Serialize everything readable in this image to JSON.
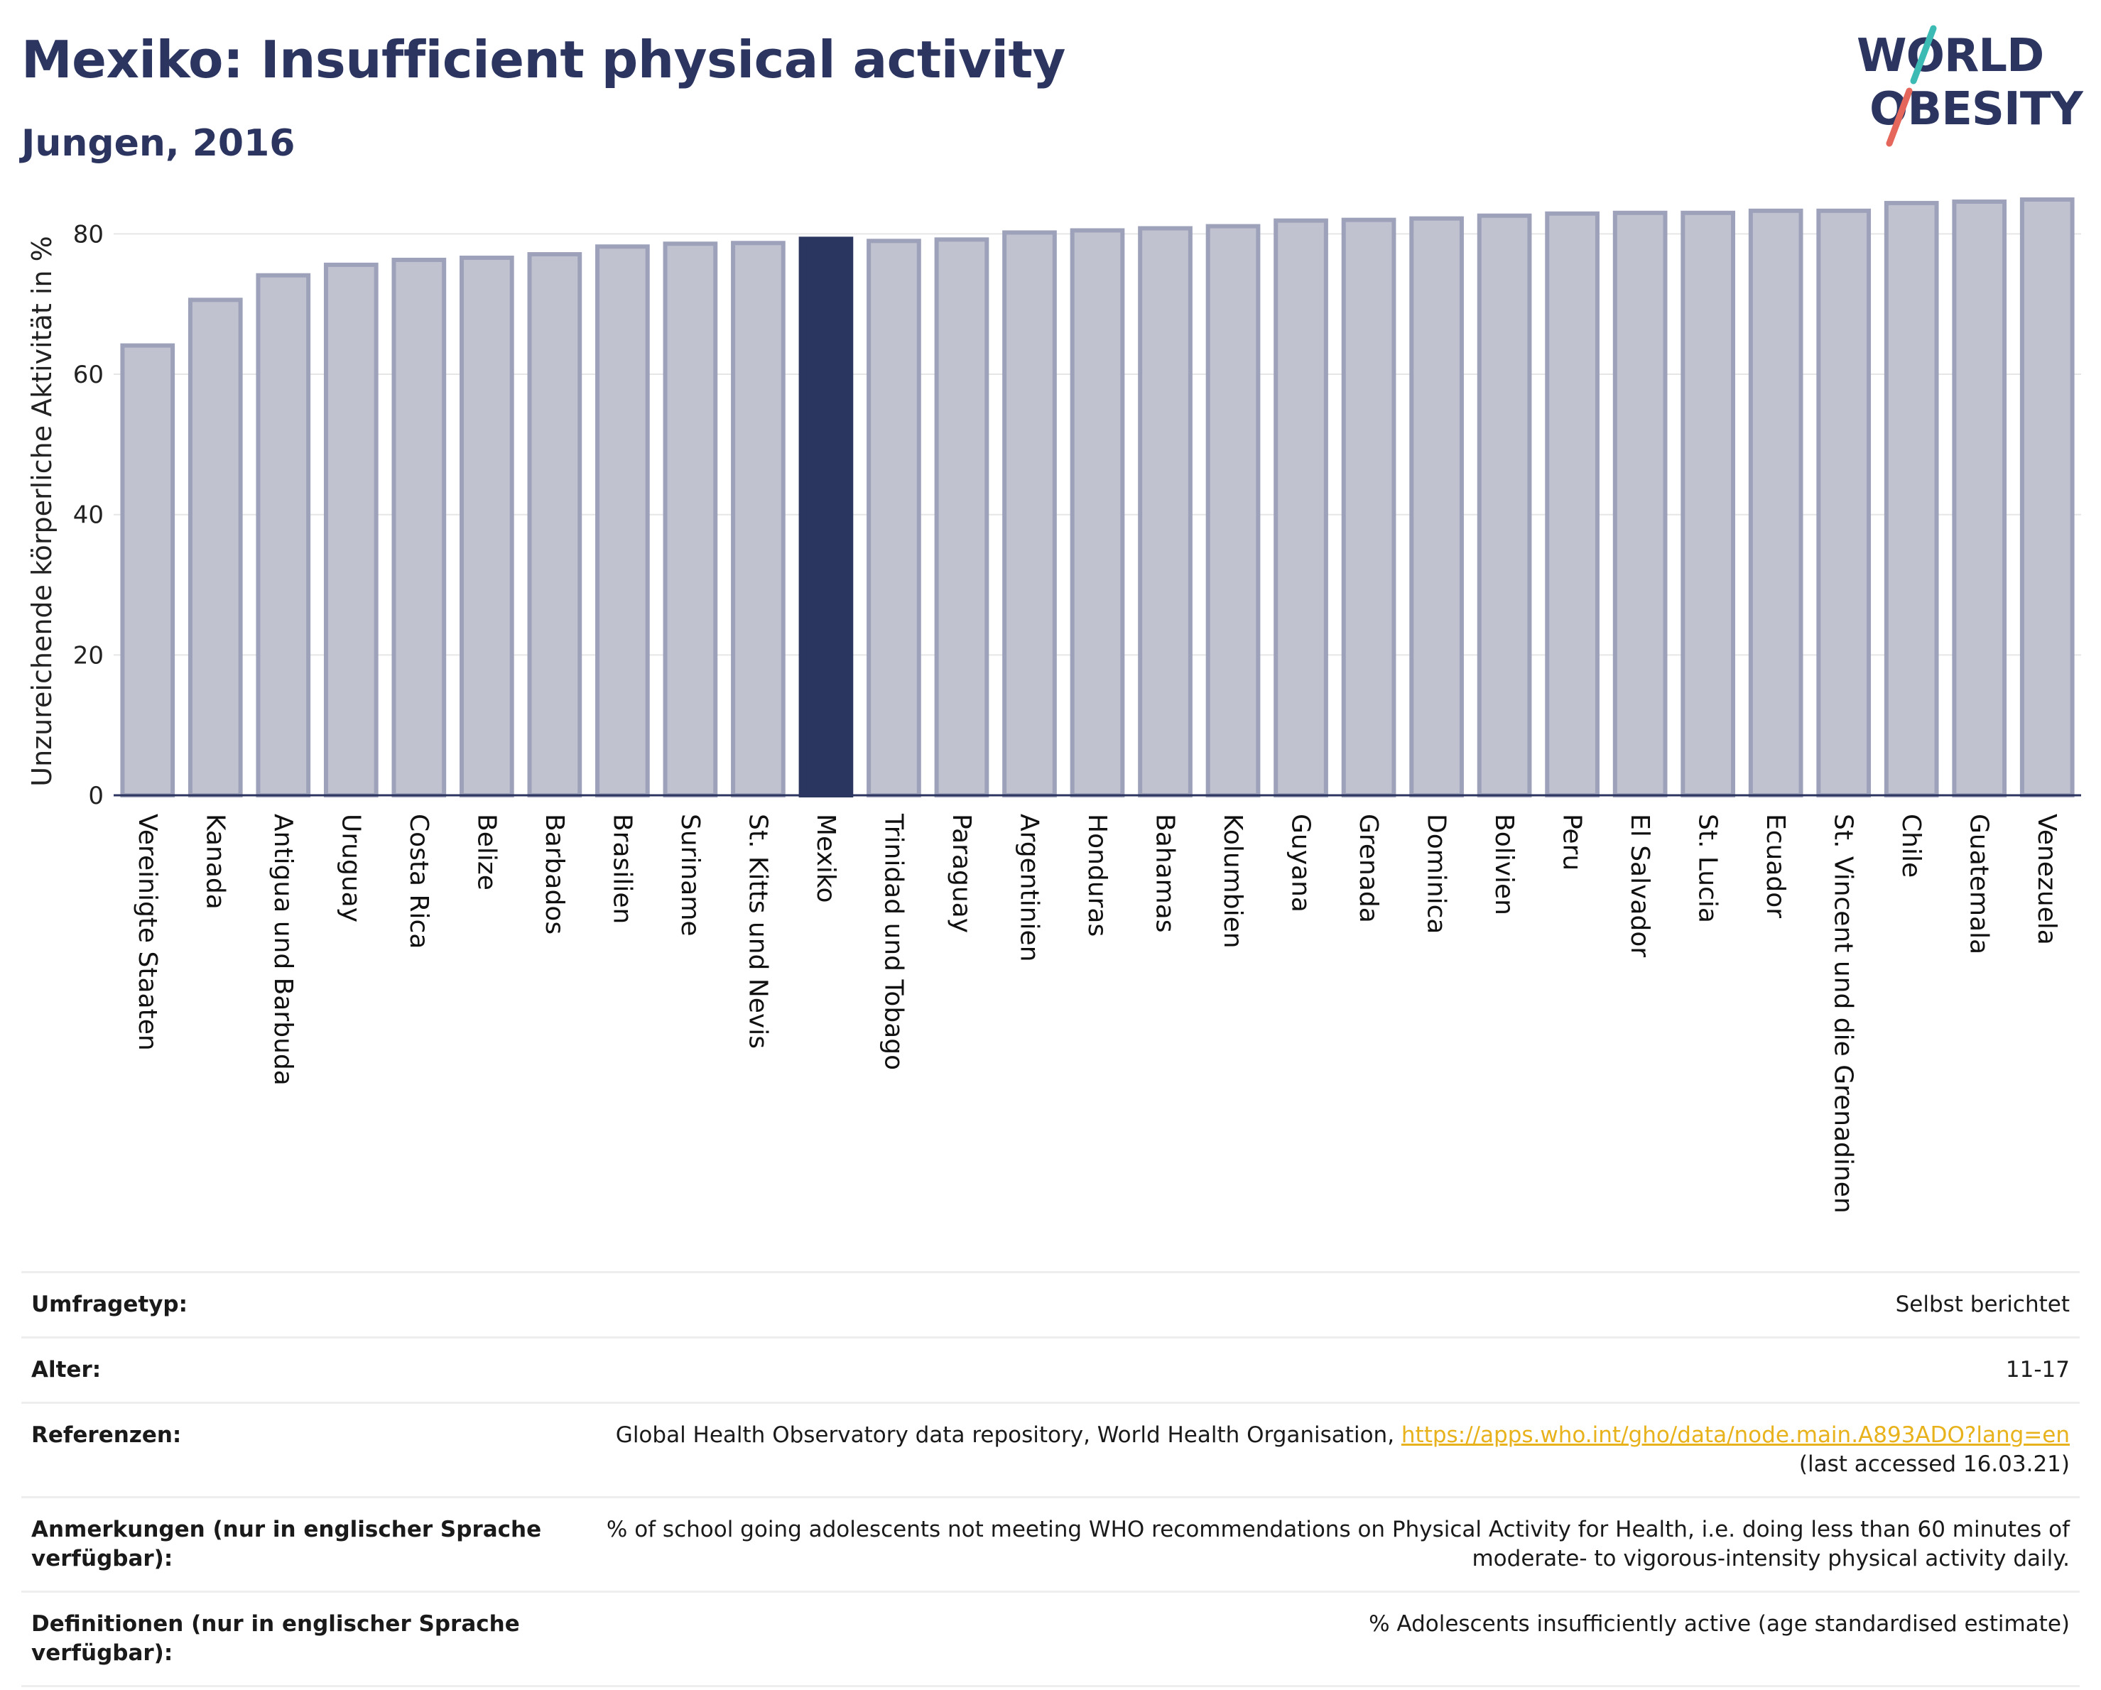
{
  "header": {
    "title": "Mexiko: Insufficient physical activity",
    "subtitle": "Jungen, 2016"
  },
  "logo": {
    "line1": "WORLD",
    "line2": "OBESITY"
  },
  "chart_data": {
    "type": "bar",
    "title": "",
    "xlabel": "",
    "ylabel": "Unzureichende körperliche Aktivität in %",
    "ylim": [
      0,
      85
    ],
    "yticks": [
      0,
      20,
      40,
      60,
      80
    ],
    "grid": true,
    "highlight": "Mexiko",
    "colors": {
      "bar": "#c0c2cf",
      "bar_border": "#9da1ba",
      "highlight": "#2a3560",
      "axis": "#2b3560",
      "grid": "#e6e6e6"
    },
    "categories": [
      "Vereinigte Staaten",
      "Kanada",
      "Antigua und Barbuda",
      "Uruguay",
      "Costa Rica",
      "Belize",
      "Barbados",
      "Brasilien",
      "Suriname",
      "St. Kitts und Nevis",
      "Mexiko",
      "Trinidad und Tobago",
      "Paraguay",
      "Argentinien",
      "Honduras",
      "Bahamas",
      "Kolumbien",
      "Guyana",
      "Grenada",
      "Dominica",
      "Bolivien",
      "Peru",
      "El Salvador",
      "St. Lucia",
      "Ecuador",
      "St. Vincent und die Grenadinen",
      "Chile",
      "Guatemala",
      "Venezuela"
    ],
    "values": [
      64.1,
      70.6,
      74.1,
      75.6,
      76.3,
      76.6,
      77.1,
      78.2,
      78.6,
      78.7,
      79.3,
      79.0,
      79.2,
      80.2,
      80.5,
      80.8,
      81.1,
      81.9,
      82.0,
      82.2,
      82.6,
      82.9,
      83.0,
      83.0,
      83.3,
      83.3,
      84.4,
      84.6,
      84.9
    ]
  },
  "footer": {
    "rows": [
      {
        "label": "Umfragetyp:",
        "value": "Selbst berichtet"
      },
      {
        "label": "Alter:",
        "value": "11-17"
      },
      {
        "label": "Referenzen:",
        "value_text": "Global Health Observatory data repository, World Health Organisation, ",
        "link": "https://apps.who.int/gho/data/node.main.A893ADO?lang=en",
        "value_after": "(last accessed 16.03.21)"
      },
      {
        "label": "Anmerkungen (nur in englischer Sprache verfügbar):",
        "value": "% of school going adolescents not meeting WHO recommendations on Physical Activity for Health, i.e. doing less than 60 minutes of moderate- to vigorous-intensity physical activity daily."
      },
      {
        "label": "Definitionen (nur in englischer Sprache verfügbar):",
        "value": "% Adolescents insufficiently active (age standardised estimate)"
      }
    ]
  }
}
